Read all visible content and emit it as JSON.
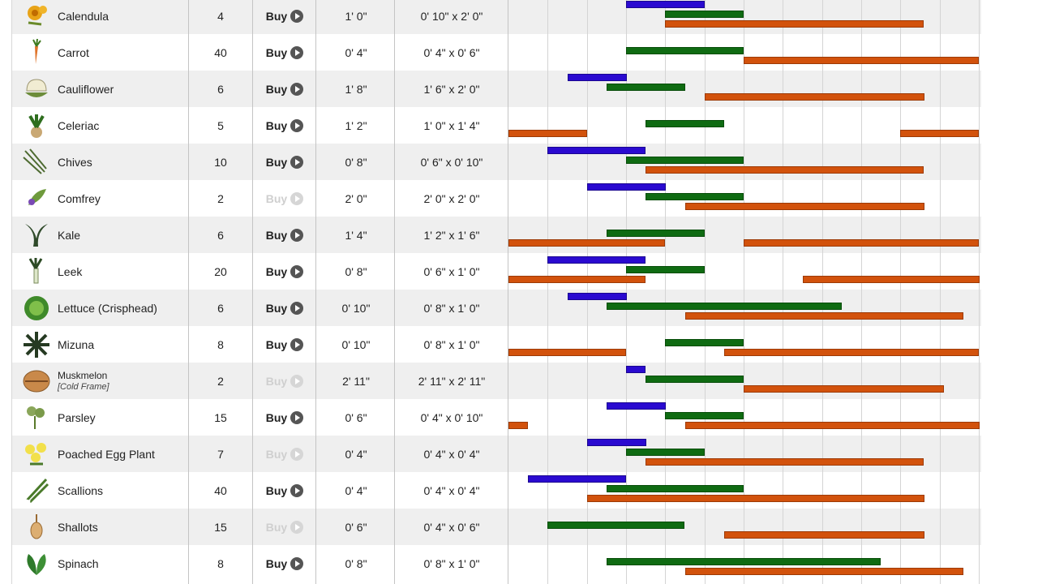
{
  "colors": {
    "sow": "#2a0ad0",
    "plant": "#0f6b12",
    "harvest": "#d2520c"
  },
  "timeline": {
    "months": 12
  },
  "rows": [
    {
      "name": "Calendula",
      "note": "",
      "count": "4",
      "buy": "Buy",
      "buy_enabled": true,
      "size": "1' 0\"",
      "spacing": "0' 10\" x 2' 0\"",
      "icon": "calendula-icon",
      "sow": [
        [
          3.0,
          5.0
        ]
      ],
      "plant": [
        [
          4.0,
          6.0
        ]
      ],
      "harvest": [
        [
          4.0,
          10.6
        ]
      ]
    },
    {
      "name": "Carrot",
      "note": "",
      "count": "40",
      "buy": "Buy",
      "buy_enabled": true,
      "size": "0' 4\"",
      "spacing": "0' 4\" x 0' 6\"",
      "icon": "carrot-icon",
      "sow": [],
      "plant": [
        [
          3.0,
          6.0
        ]
      ],
      "harvest": [
        [
          6.0,
          12.0
        ]
      ]
    },
    {
      "name": "Cauliflower",
      "note": "",
      "count": "6",
      "buy": "Buy",
      "buy_enabled": true,
      "size": "1' 8\"",
      "spacing": "1' 6\" x 2' 0\"",
      "icon": "cauliflower-icon",
      "sow": [
        [
          1.5,
          3.0
        ]
      ],
      "plant": [
        [
          2.5,
          4.5
        ]
      ],
      "harvest": [
        [
          5.0,
          10.6
        ]
      ]
    },
    {
      "name": "Celeriac",
      "note": "",
      "count": "5",
      "buy": "Buy",
      "buy_enabled": true,
      "size": "1' 2\"",
      "spacing": "1' 0\" x 1' 4\"",
      "icon": "celeriac-icon",
      "sow": [],
      "plant": [
        [
          3.5,
          5.5
        ]
      ],
      "harvest": [
        [
          0.0,
          2.0
        ],
        [
          10.0,
          12.0
        ]
      ]
    },
    {
      "name": "Chives",
      "note": "",
      "count": "10",
      "buy": "Buy",
      "buy_enabled": true,
      "size": "0' 8\"",
      "spacing": "0' 6\" x 0' 10\"",
      "icon": "chives-icon",
      "sow": [
        [
          1.0,
          3.5
        ]
      ],
      "plant": [
        [
          3.0,
          6.0
        ]
      ],
      "harvest": [
        [
          3.5,
          10.6
        ]
      ]
    },
    {
      "name": "Comfrey",
      "note": "",
      "count": "2",
      "buy": "Buy",
      "buy_enabled": false,
      "size": "2' 0\"",
      "spacing": "2' 0\" x 2' 0\"",
      "icon": "comfrey-icon",
      "sow": [
        [
          2.0,
          4.0
        ]
      ],
      "plant": [
        [
          3.5,
          6.0
        ]
      ],
      "harvest": [
        [
          4.5,
          10.6
        ]
      ]
    },
    {
      "name": "Kale",
      "note": "",
      "count": "6",
      "buy": "Buy",
      "buy_enabled": true,
      "size": "1' 4\"",
      "spacing": "1' 2\" x 1' 6\"",
      "icon": "kale-icon",
      "sow": [],
      "plant": [
        [
          2.5,
          5.0
        ]
      ],
      "harvest": [
        [
          0.0,
          4.0
        ],
        [
          6.0,
          12.0
        ]
      ]
    },
    {
      "name": "Leek",
      "note": "",
      "count": "20",
      "buy": "Buy",
      "buy_enabled": true,
      "size": "0' 8\"",
      "spacing": "0' 6\" x 1' 0\"",
      "icon": "leek-icon",
      "sow": [
        [
          1.0,
          3.5
        ]
      ],
      "plant": [
        [
          3.0,
          5.0
        ]
      ],
      "harvest": [
        [
          0.0,
          3.5
        ],
        [
          7.5,
          12.0
        ]
      ]
    },
    {
      "name": "Lettuce (Crisphead)",
      "note": "",
      "count": "6",
      "buy": "Buy",
      "buy_enabled": true,
      "size": "0' 10\"",
      "spacing": "0' 8\" x 1' 0\"",
      "icon": "lettuce-icon",
      "sow": [
        [
          1.5,
          3.0
        ]
      ],
      "plant": [
        [
          2.5,
          8.5
        ]
      ],
      "harvest": [
        [
          4.5,
          11.6
        ]
      ]
    },
    {
      "name": "Mizuna",
      "note": "",
      "count": "8",
      "buy": "Buy",
      "buy_enabled": true,
      "size": "0' 10\"",
      "spacing": "0' 8\" x 1' 0\"",
      "icon": "mizuna-icon",
      "sow": [],
      "plant": [
        [
          4.0,
          6.0
        ]
      ],
      "harvest": [
        [
          0.0,
          3.0
        ],
        [
          5.5,
          12.0
        ]
      ]
    },
    {
      "name": "Muskmelon",
      "note": "[Cold Frame]",
      "count": "2",
      "buy": "Buy",
      "buy_enabled": false,
      "size": "2' 11\"",
      "spacing": "2' 11\" x 2' 11\"",
      "icon": "muskmelon-icon",
      "sow": [
        [
          3.0,
          3.5
        ]
      ],
      "plant": [
        [
          3.5,
          6.0
        ]
      ],
      "harvest": [
        [
          6.0,
          11.1
        ]
      ]
    },
    {
      "name": "Parsley",
      "note": "",
      "count": "15",
      "buy": "Buy",
      "buy_enabled": true,
      "size": "0' 6\"",
      "spacing": "0' 4\" x 0' 10\"",
      "icon": "parsley-icon",
      "sow": [
        [
          2.5,
          4.0
        ]
      ],
      "plant": [
        [
          4.0,
          6.0
        ]
      ],
      "harvest": [
        [
          0.0,
          0.5
        ],
        [
          4.5,
          12.0
        ]
      ]
    },
    {
      "name": "Poached Egg Plant",
      "note": "",
      "count": "7",
      "buy": "Buy",
      "buy_enabled": false,
      "size": "0' 4\"",
      "spacing": "0' 4\" x 0' 4\"",
      "icon": "poached-egg-plant-icon",
      "sow": [
        [
          2.0,
          3.5
        ]
      ],
      "plant": [
        [
          3.0,
          5.0
        ]
      ],
      "harvest": [
        [
          3.5,
          10.6
        ]
      ]
    },
    {
      "name": "Scallions",
      "note": "",
      "count": "40",
      "buy": "Buy",
      "buy_enabled": true,
      "size": "0' 4\"",
      "spacing": "0' 4\" x 0' 4\"",
      "icon": "scallions-icon",
      "sow": [
        [
          0.5,
          3.0
        ]
      ],
      "plant": [
        [
          2.5,
          6.0
        ]
      ],
      "harvest": [
        [
          2.0,
          10.6
        ]
      ]
    },
    {
      "name": "Shallots",
      "note": "",
      "count": "15",
      "buy": "Buy",
      "buy_enabled": false,
      "size": "0' 6\"",
      "spacing": "0' 4\" x 0' 6\"",
      "icon": "shallots-icon",
      "sow": [],
      "plant": [
        [
          1.0,
          4.5
        ]
      ],
      "harvest": [
        [
          5.5,
          10.6
        ]
      ]
    },
    {
      "name": "Spinach",
      "note": "",
      "count": "8",
      "buy": "Buy",
      "buy_enabled": true,
      "size": "0' 8\"",
      "spacing": "0' 8\" x 1' 0\"",
      "icon": "spinach-icon",
      "sow": [],
      "plant": [
        [
          2.5,
          9.5
        ]
      ],
      "harvest": [
        [
          4.5,
          11.6
        ]
      ]
    }
  ]
}
